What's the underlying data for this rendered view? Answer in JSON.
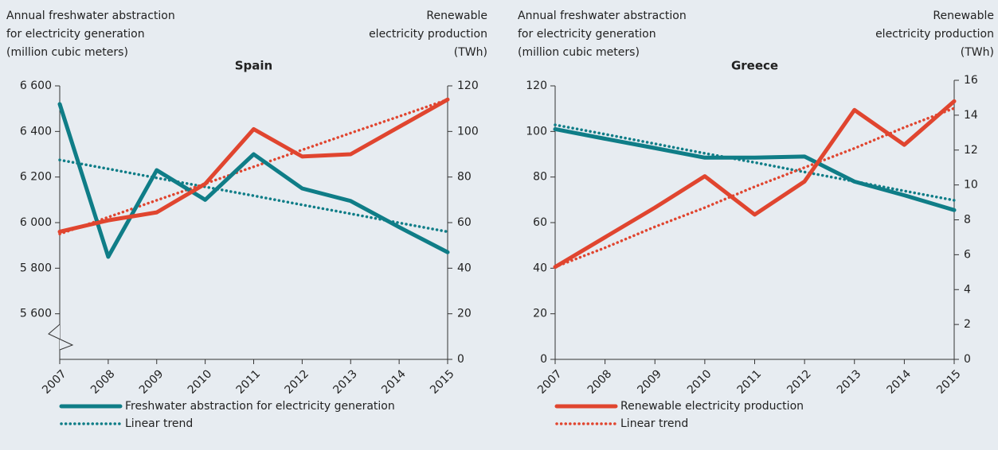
{
  "chart_data": [
    {
      "type": "line",
      "title": "Spain",
      "ylabel": [
        "Annual freshwater abstraction",
        "for electricity generation",
        "(million cubic meters)"
      ],
      "y2label": [
        "Renewable",
        "electricity production",
        "(TWh)"
      ],
      "categories": [
        "2007",
        "2008",
        "2009",
        "2010",
        "2011",
        "2012",
        "2013",
        "2014",
        "2015"
      ],
      "ylim": [
        5400,
        6600
      ],
      "yticks": [
        {
          "value": 5600,
          "label": "5 600"
        },
        {
          "value": 5800,
          "label": "5 800"
        },
        {
          "value": 6000,
          "label": "6 000"
        },
        {
          "value": 6200,
          "label": "6 200"
        },
        {
          "value": 6400,
          "label": "6 400"
        },
        {
          "value": 6600,
          "label": "6 600"
        }
      ],
      "y2lim": [
        0,
        120
      ],
      "y2ticks": [
        0,
        20,
        40,
        60,
        80,
        100,
        120
      ],
      "axis_break": true,
      "series": [
        {
          "name": "Freshwater abstraction for electricity generation",
          "color": "#0f7d87",
          "style": "solid",
          "values": [
            6520,
            5850,
            6230,
            6100,
            6300,
            6150,
            6095,
            5980,
            5870
          ]
        },
        {
          "name": "Linear trend",
          "color": "#0f7d87",
          "style": "dotted",
          "values": [
            6275,
            6236,
            6196,
            6157,
            6118,
            6078,
            6039,
            5999,
            5960
          ]
        },
        {
          "color": "#e0452f",
          "style": "solid",
          "axis": "y2",
          "values": [
            56,
            61,
            64.5,
            77,
            101,
            89,
            90,
            102,
            114
          ]
        },
        {
          "color": "#e0452f",
          "style": "dotted",
          "axis": "y2",
          "values": [
            55,
            62.4,
            69.8,
            77.1,
            84.5,
            91.9,
            99.3,
            106.6,
            114
          ]
        }
      ]
    },
    {
      "type": "line",
      "title": "Greece",
      "ylabel": [
        "Annual freshwater abstraction",
        "for electricity generation",
        "(million cubic meters)"
      ],
      "y2label": [
        "Renewable",
        "electricity production",
        "(TWh)"
      ],
      "categories": [
        "2007",
        "2008",
        "2009",
        "2010",
        "2011",
        "2012",
        "2013",
        "2014",
        "2015"
      ],
      "ylim": [
        0,
        120
      ],
      "yticks": [
        0,
        20,
        40,
        60,
        80,
        100,
        120
      ],
      "y2lim": [
        0,
        16
      ],
      "y2ticks": [
        0,
        2,
        4,
        6,
        8,
        10,
        12,
        14,
        16
      ],
      "axis_break": false,
      "series": [
        {
          "color": "#0f7d87",
          "style": "solid",
          "values": [
            101,
            96.8,
            92.7,
            88.5,
            88.5,
            89,
            78,
            72,
            65.5
          ]
        },
        {
          "color": "#0f7d87",
          "style": "dotted",
          "values": [
            102.9,
            98.8,
            94.6,
            90.4,
            86.4,
            82.2,
            78.1,
            73.9,
            69.8
          ]
        },
        {
          "name": "Renewable electricity production",
          "color": "#e0452f",
          "style": "solid",
          "axis": "y2",
          "values": [
            5.3,
            7.0,
            8.7,
            10.5,
            8.3,
            10.2,
            14.3,
            12.3,
            14.8
          ]
        },
        {
          "name": "Linear trend",
          "color": "#e0452f",
          "style": "dotted",
          "axis": "y2",
          "values": [
            5.3,
            6.4,
            7.6,
            8.7,
            9.9,
            11.0,
            12.1,
            13.3,
            14.4
          ]
        }
      ]
    }
  ]
}
